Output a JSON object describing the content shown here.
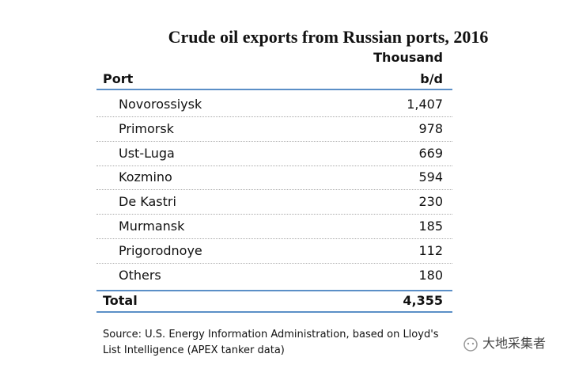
{
  "title": "Crude oil exports from Russian ports, 2016",
  "table": {
    "header": {
      "port": "Port",
      "unit_line1": "Thousand",
      "unit_line2": "b/d"
    },
    "rows": [
      [
        "Novorossiysk",
        "1,407"
      ],
      [
        "Primorsk",
        "978"
      ],
      [
        "Ust-Luga",
        "669"
      ],
      [
        "Kozmino",
        "594"
      ],
      [
        "De Kastri",
        "230"
      ],
      [
        "Murmansk",
        "185"
      ],
      [
        "Prigorodnoye",
        "112"
      ],
      [
        "Others",
        "180"
      ]
    ],
    "total": [
      "Total",
      "4,355"
    ]
  },
  "source": {
    "line1": "Source: U.S. Energy Information Administration, based on Lloyd's",
    "line2": "List Intelligence (APEX tanker data)"
  },
  "watermark": "大地采集者"
}
